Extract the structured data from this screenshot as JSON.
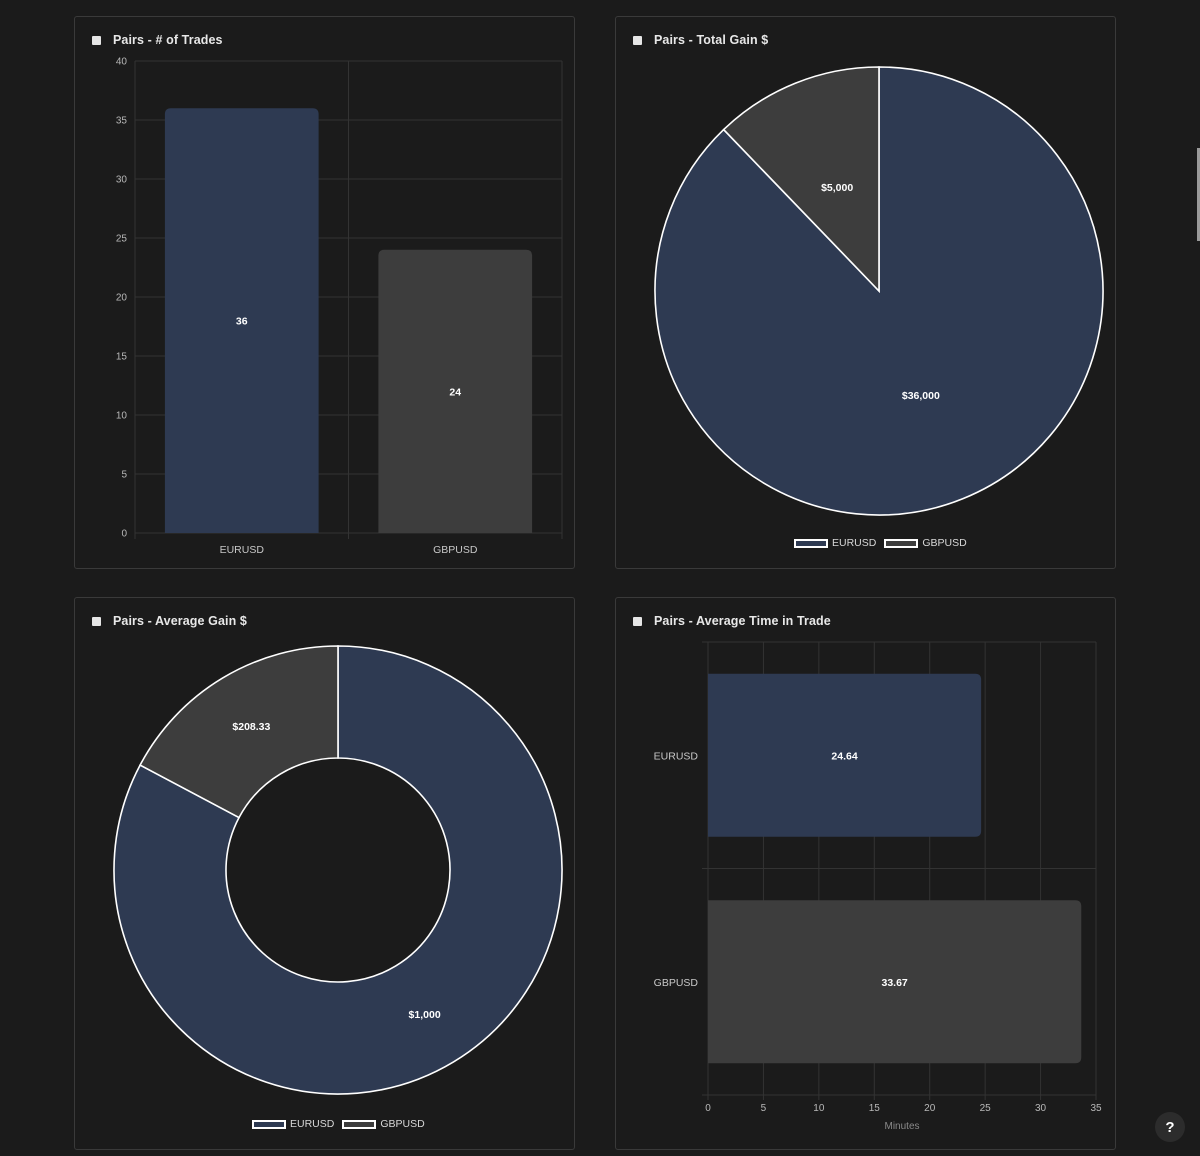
{
  "colors": {
    "eurusd": "#2e3a52",
    "gbpusd": "#3d3d3d",
    "grid": "#333333",
    "slice_border": "#ffffff"
  },
  "chart_data": [
    {
      "id": "trades",
      "type": "bar",
      "orientation": "vertical",
      "title": "Pairs - # of Trades",
      "categories": [
        "EURUSD",
        "GBPUSD"
      ],
      "values": [
        36,
        24
      ],
      "value_labels": [
        "36",
        "24"
      ],
      "ylim": [
        0,
        40
      ],
      "yticks": [
        0,
        5,
        10,
        15,
        20,
        25,
        30,
        35,
        40
      ],
      "xlabel": "",
      "ylabel": "",
      "grid": true
    },
    {
      "id": "total",
      "type": "pie",
      "title": "Pairs - Total Gain $",
      "labels": [
        "EURUSD",
        "GBPUSD"
      ],
      "values": [
        36000,
        5000
      ],
      "value_labels": [
        "$36,000",
        "$5,000"
      ],
      "legend": "bottom"
    },
    {
      "id": "avg",
      "type": "pie",
      "variant": "doughnut",
      "title": "Pairs - Average Gain $",
      "labels": [
        "EURUSD",
        "GBPUSD"
      ],
      "values": [
        1000,
        208.33
      ],
      "value_labels": [
        "$1,000",
        "$208.33"
      ],
      "legend": "bottom"
    },
    {
      "id": "time",
      "type": "bar",
      "orientation": "horizontal",
      "title": "Pairs - Average Time in Trade",
      "categories": [
        "EURUSD",
        "GBPUSD"
      ],
      "values": [
        24.64,
        33.67
      ],
      "value_labels": [
        "24.64",
        "33.67"
      ],
      "xlim": [
        0,
        35
      ],
      "xticks": [
        0,
        5,
        10,
        15,
        20,
        25,
        30,
        35
      ],
      "xlabel": "Minutes",
      "grid": true
    }
  ],
  "help": {
    "label": "?"
  }
}
